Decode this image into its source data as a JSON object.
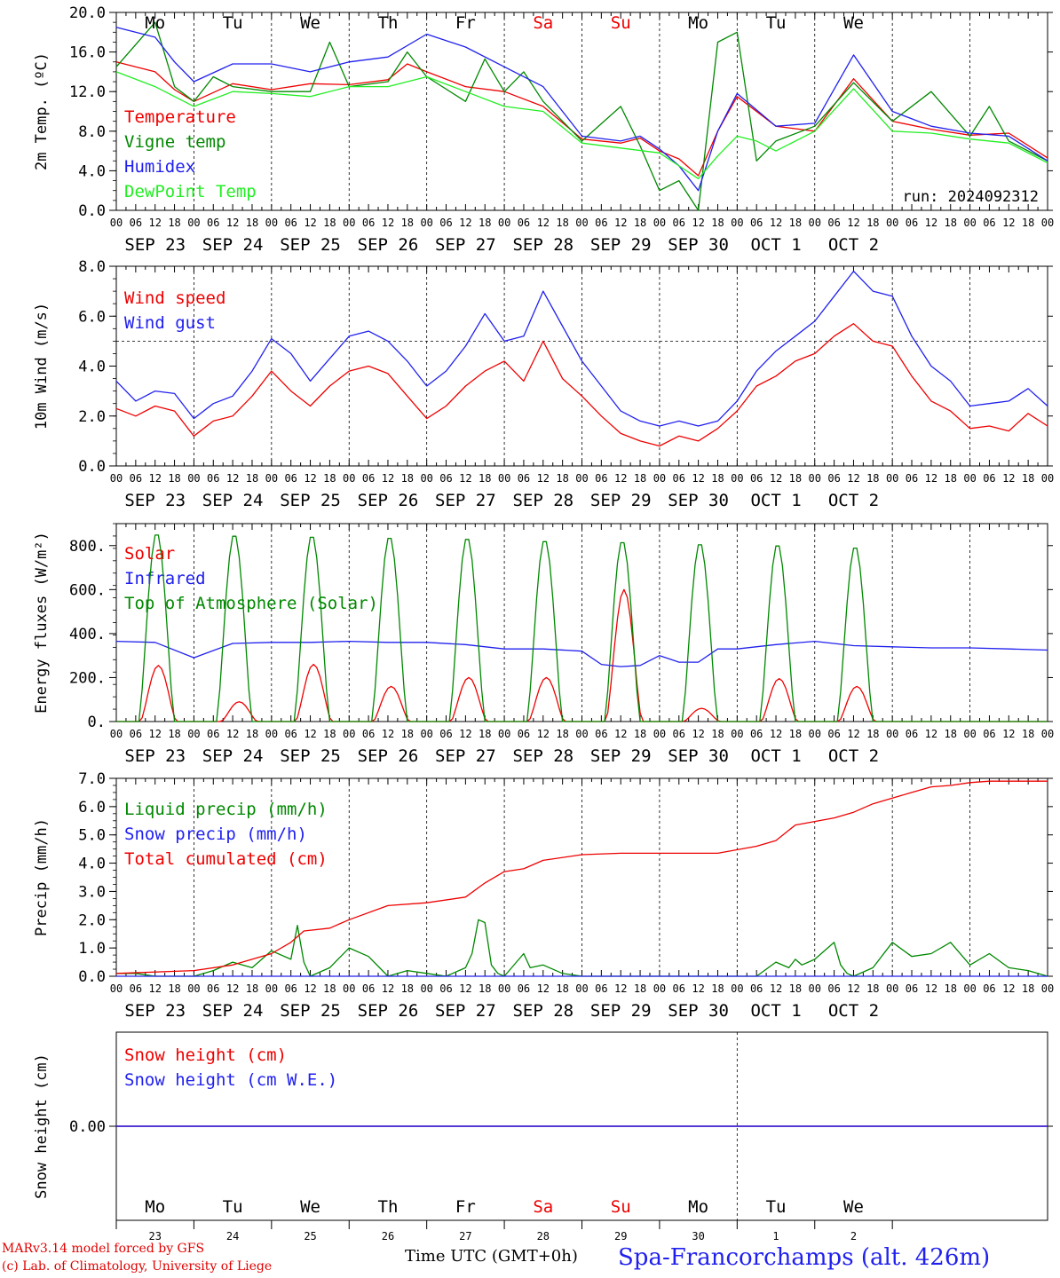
{
  "chart_data": [
    {
      "type": "line",
      "id": "temp",
      "ylabel": "2m Temp. (ºC)",
      "ylim": [
        0,
        20
      ],
      "yticks": [
        "0.0",
        "4.0",
        "8.0",
        "12.0",
        "16.0",
        "20.0"
      ],
      "x_unit": "hours since 2024-09-23 00 UTC",
      "grid": "dashed day separators",
      "legend_position": "left",
      "annotation": "run: 2024092312",
      "series": [
        {
          "name": "Temperature",
          "color": "#ee0000",
          "x": [
            0,
            12,
            18,
            24,
            36,
            48,
            60,
            72,
            84,
            90,
            96,
            108,
            120,
            132,
            144,
            156,
            162,
            168,
            174,
            180,
            186,
            192,
            204,
            216,
            228,
            240,
            252,
            264,
            276,
            288
          ],
          "y": [
            15.0,
            14.0,
            12.2,
            11.0,
            12.8,
            12.2,
            12.8,
            12.7,
            13.2,
            14.8,
            14.0,
            12.5,
            12.0,
            10.5,
            7.2,
            6.8,
            7.3,
            6.0,
            5.2,
            3.5,
            8.0,
            11.5,
            8.5,
            8.0,
            13.3,
            9.0,
            8.2,
            7.6,
            7.8,
            5.3
          ]
        },
        {
          "name": "Vigne temp",
          "color": "#008800",
          "x": [
            0,
            12,
            18,
            24,
            30,
            36,
            48,
            60,
            66,
            72,
            84,
            90,
            96,
            108,
            114,
            120,
            126,
            132,
            144,
            156,
            162,
            168,
            174,
            180,
            186,
            192,
            198,
            204,
            216,
            228,
            240,
            252,
            264,
            270,
            276,
            288
          ],
          "y": [
            14.5,
            19.0,
            12.5,
            11.0,
            13.5,
            12.5,
            12.0,
            12.0,
            17.0,
            12.5,
            13.0,
            16.0,
            13.5,
            11.0,
            15.3,
            12.0,
            14.0,
            11.0,
            7.0,
            10.5,
            6.5,
            2.0,
            3.0,
            -0.5,
            17.0,
            18.0,
            5.0,
            7.0,
            8.5,
            12.9,
            9.0,
            12.0,
            7.5,
            10.5,
            7.0,
            5.0
          ]
        },
        {
          "name": "Humidex",
          "color": "#2020ee",
          "x": [
            0,
            12,
            18,
            24,
            36,
            48,
            60,
            72,
            84,
            96,
            108,
            120,
            132,
            144,
            156,
            162,
            168,
            174,
            180,
            186,
            192,
            204,
            216,
            228,
            240,
            252,
            264,
            276,
            288
          ],
          "y": [
            18.5,
            17.5,
            15.0,
            13.0,
            14.8,
            14.8,
            14.0,
            15.0,
            15.5,
            17.8,
            16.5,
            14.5,
            12.5,
            7.5,
            7.0,
            7.5,
            6.2,
            4.5,
            2.0,
            8.0,
            11.8,
            8.5,
            8.8,
            15.7,
            10.0,
            8.5,
            7.8,
            7.5,
            5.0
          ]
        },
        {
          "name": "DewPoint Temp",
          "color": "#22ee22",
          "x": [
            0,
            12,
            24,
            36,
            48,
            60,
            72,
            84,
            96,
            108,
            120,
            132,
            144,
            156,
            168,
            180,
            186,
            192,
            198,
            204,
            216,
            228,
            240,
            252,
            264,
            276,
            288
          ],
          "y": [
            14.0,
            12.5,
            10.5,
            12.0,
            11.8,
            11.5,
            12.5,
            12.5,
            13.5,
            12.0,
            10.5,
            10.0,
            6.8,
            6.3,
            5.8,
            3.2,
            5.5,
            7.5,
            7.0,
            6.0,
            8.0,
            12.3,
            8.0,
            7.8,
            7.2,
            6.8,
            4.8
          ]
        }
      ]
    },
    {
      "type": "line",
      "id": "wind",
      "ylabel": "10m Wind (m/s)",
      "ylim": [
        0,
        8
      ],
      "yticks": [
        "0.0",
        "2.0",
        "4.0",
        "6.0",
        "8.0"
      ],
      "reference_line": 5.0,
      "legend_position": "left",
      "series": [
        {
          "name": "Wind speed",
          "color": "#ee0000",
          "x": [
            0,
            6,
            12,
            18,
            24,
            30,
            36,
            42,
            48,
            54,
            60,
            66,
            72,
            78,
            84,
            90,
            96,
            102,
            108,
            114,
            120,
            126,
            132,
            138,
            144,
            150,
            156,
            162,
            168,
            174,
            180,
            186,
            192,
            198,
            204,
            210,
            216,
            222,
            228,
            234,
            240,
            246,
            252,
            258,
            264,
            270,
            276,
            282,
            288
          ],
          "y": [
            2.3,
            2.0,
            2.4,
            2.2,
            1.2,
            1.8,
            2.0,
            2.8,
            3.8,
            3.0,
            2.4,
            3.2,
            3.8,
            4.0,
            3.7,
            2.8,
            1.9,
            2.4,
            3.2,
            3.8,
            4.2,
            3.4,
            5.0,
            3.5,
            2.8,
            2.0,
            1.3,
            1.0,
            0.8,
            1.2,
            1.0,
            1.5,
            2.2,
            3.2,
            3.6,
            4.2,
            4.5,
            5.2,
            5.7,
            5.0,
            4.8,
            3.6,
            2.6,
            2.2,
            1.5,
            1.6,
            1.4,
            2.1,
            1.6
          ]
        },
        {
          "name": "Wind gust",
          "color": "#2020ee",
          "x": [
            0,
            6,
            12,
            18,
            24,
            30,
            36,
            42,
            48,
            54,
            60,
            66,
            72,
            78,
            84,
            90,
            96,
            102,
            108,
            114,
            120,
            126,
            132,
            138,
            144,
            150,
            156,
            162,
            168,
            174,
            180,
            186,
            192,
            198,
            204,
            210,
            216,
            222,
            228,
            234,
            240,
            246,
            252,
            258,
            264,
            270,
            276,
            282,
            288
          ],
          "y": [
            3.4,
            2.6,
            3.0,
            2.9,
            1.9,
            2.5,
            2.8,
            3.8,
            5.1,
            4.5,
            3.4,
            4.3,
            5.2,
            5.4,
            5.0,
            4.2,
            3.2,
            3.8,
            4.8,
            6.1,
            5.0,
            5.2,
            7.0,
            5.6,
            4.2,
            3.2,
            2.2,
            1.8,
            1.6,
            1.8,
            1.6,
            1.8,
            2.6,
            3.8,
            4.6,
            5.2,
            5.8,
            6.8,
            7.8,
            7.0,
            6.8,
            5.2,
            4.0,
            3.4,
            2.4,
            2.5,
            2.6,
            3.1,
            2.4
          ]
        }
      ]
    },
    {
      "type": "line",
      "id": "energy",
      "ylabel": "Energy fluxes (W/m²)",
      "ylim": [
        0,
        900
      ],
      "yticks": [
        "0.",
        "200.",
        "400.",
        "600.",
        "800."
      ],
      "legend_position": "left",
      "series": [
        {
          "name": "Solar",
          "color": "#ee0000",
          "peaks": [
            [
              13,
              255
            ],
            [
              38,
              90
            ],
            [
              61,
              260
            ],
            [
              85,
              160
            ],
            [
              109,
              200
            ],
            [
              133,
              200
            ],
            [
              157,
              600
            ],
            [
              181,
              60
            ],
            [
              205,
              195
            ],
            [
              229,
              160
            ]
          ]
        },
        {
          "name": "Infrared",
          "color": "#2020ee",
          "x": [
            0,
            12,
            24,
            36,
            48,
            60,
            72,
            84,
            96,
            108,
            120,
            132,
            144,
            150,
            156,
            162,
            168,
            174,
            180,
            186,
            192,
            204,
            216,
            228,
            240,
            252,
            264,
            276,
            288
          ],
          "y": [
            365,
            360,
            290,
            355,
            360,
            360,
            365,
            360,
            360,
            350,
            330,
            330,
            320,
            260,
            250,
            255,
            300,
            270,
            270,
            330,
            330,
            350,
            365,
            345,
            340,
            335,
            335,
            330,
            325
          ]
        },
        {
          "name": "Top of Atmosphere (Solar)",
          "color": "#008800",
          "peaks": [
            [
              12.5,
              860
            ],
            [
              36.5,
              855
            ],
            [
              60.5,
              850
            ],
            [
              84.5,
              845
            ],
            [
              108.5,
              840
            ],
            [
              132.5,
              830
            ],
            [
              156.5,
              825
            ],
            [
              180.5,
              815
            ],
            [
              204.5,
              810
            ],
            [
              228.5,
              800
            ]
          ]
        }
      ]
    },
    {
      "type": "line",
      "id": "precip",
      "ylabel": "Precip (mm/h)",
      "ylim": [
        0,
        7
      ],
      "yticks": [
        "0.0",
        "1.0",
        "2.0",
        "3.0",
        "4.0",
        "5.0",
        "6.0",
        "7.0"
      ],
      "legend_position": "left",
      "series": [
        {
          "name": "Liquid precip (mm/h)",
          "color": "#008800",
          "x": [
            0,
            6,
            12,
            18,
            24,
            30,
            36,
            42,
            48,
            54,
            56,
            58,
            60,
            66,
            72,
            78,
            84,
            90,
            96,
            102,
            108,
            110,
            112,
            114,
            116,
            118,
            120,
            126,
            128,
            132,
            138,
            144,
            150,
            156,
            162,
            168,
            174,
            180,
            186,
            192,
            198,
            204,
            208,
            210,
            212,
            216,
            222,
            224,
            226,
            228,
            234,
            240,
            246,
            252,
            258,
            264,
            270,
            276,
            282,
            288
          ],
          "y": [
            0.1,
            0.1,
            0.0,
            0.0,
            0.0,
            0.2,
            0.5,
            0.3,
            0.9,
            0.6,
            1.8,
            0.5,
            0.0,
            0.3,
            1.0,
            0.7,
            0.0,
            0.2,
            0.1,
            0.0,
            0.3,
            0.8,
            2.0,
            1.9,
            0.4,
            0.1,
            0.0,
            0.8,
            0.3,
            0.4,
            0.1,
            0.0,
            0.0,
            0.0,
            0.0,
            0.0,
            0.0,
            0.0,
            0.0,
            0.0,
            0.0,
            0.5,
            0.3,
            0.6,
            0.4,
            0.6,
            1.2,
            0.4,
            0.1,
            0.0,
            0.3,
            1.2,
            0.7,
            0.8,
            1.2,
            0.4,
            0.8,
            0.3,
            0.2,
            0.0
          ]
        },
        {
          "name": "Snow precip (mm/h)",
          "color": "#2020ee",
          "x": [
            0,
            288
          ],
          "y": [
            0,
            0
          ]
        },
        {
          "name": "Total cumulated (cm)",
          "color": "#ee0000",
          "x": [
            0,
            24,
            36,
            48,
            54,
            58,
            66,
            72,
            84,
            96,
            108,
            114,
            120,
            126,
            132,
            144,
            156,
            168,
            186,
            198,
            204,
            210,
            222,
            228,
            234,
            240,
            246,
            252,
            258,
            264,
            270,
            276,
            288
          ],
          "y": [
            0.1,
            0.2,
            0.4,
            0.8,
            1.2,
            1.6,
            1.7,
            2.0,
            2.5,
            2.6,
            2.8,
            3.3,
            3.7,
            3.8,
            4.1,
            4.3,
            4.35,
            4.35,
            4.35,
            4.6,
            4.8,
            5.35,
            5.6,
            5.8,
            6.1,
            6.3,
            6.5,
            6.7,
            6.75,
            6.85,
            6.9,
            6.9,
            6.9
          ]
        }
      ]
    },
    {
      "type": "line",
      "id": "snow",
      "ylabel": "Snow height (cm)",
      "ylim": [
        -1,
        1
      ],
      "yticks": [
        "0.00"
      ],
      "legend_position": "left",
      "series": [
        {
          "name": "Snow height (cm)",
          "color": "#ee0000",
          "x": [
            0,
            288
          ],
          "y": [
            0,
            0
          ]
        },
        {
          "name": "Snow height (cm W.E.)",
          "color": "#2020ee",
          "x": [
            0,
            288
          ],
          "y": [
            0,
            0
          ]
        }
      ]
    }
  ],
  "time_axis": {
    "hour_labels": [
      "00",
      "06",
      "12",
      "18"
    ],
    "final_hour_label": "00",
    "date_labels": [
      "SEP 23",
      "SEP 24",
      "SEP 25",
      "SEP 26",
      "SEP 27",
      "SEP 28",
      "SEP 29",
      "SEP 30",
      "OCT  1",
      "OCT  2"
    ],
    "weekdays": [
      "Mo",
      "Tu",
      "We",
      "Th",
      "Fr",
      "Sa",
      "Su",
      "Mo",
      "Tu",
      "We"
    ],
    "weekend_indices": [
      5,
      6
    ],
    "weekday_color": "#000000",
    "weekend_color": "#ee0000",
    "day_numbers": [
      "23",
      "24",
      "25",
      "26",
      "27",
      "28",
      "29",
      "30",
      "1",
      "2"
    ]
  },
  "footer": {
    "credit_line1": "MARv3.14 model forced by GFS",
    "credit_line2": "(c) Lab. of Climatology, University of Liege",
    "time_label": "Time UTC (GMT+0h)",
    "station": "Spa-Francorchamps (alt. 426m)"
  }
}
